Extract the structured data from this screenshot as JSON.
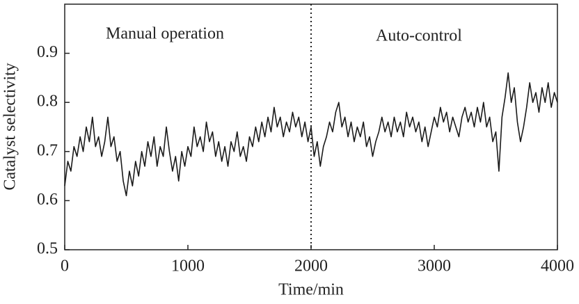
{
  "chart_data": {
    "type": "line",
    "xlabel": "Time/min",
    "ylabel": "Catalyst selectivity",
    "annotations": [
      "Manual operation",
      "Auto-control"
    ],
    "vline": 2000,
    "xlim": [
      0,
      4000
    ],
    "xticks": [
      0,
      1000,
      2000,
      3000,
      4000
    ],
    "ylim": [
      0.5,
      1.0
    ],
    "yticks": [
      0.5,
      0.6,
      0.7,
      0.8,
      0.9
    ],
    "x": [
      0,
      25,
      50,
      75,
      100,
      125,
      150,
      175,
      200,
      225,
      250,
      275,
      300,
      325,
      350,
      375,
      400,
      425,
      450,
      475,
      500,
      525,
      550,
      575,
      600,
      625,
      650,
      675,
      700,
      725,
      750,
      775,
      800,
      825,
      850,
      875,
      900,
      925,
      950,
      975,
      1000,
      1025,
      1050,
      1075,
      1100,
      1125,
      1150,
      1175,
      1200,
      1225,
      1250,
      1275,
      1300,
      1325,
      1350,
      1375,
      1400,
      1425,
      1450,
      1475,
      1500,
      1525,
      1550,
      1575,
      1600,
      1625,
      1650,
      1675,
      1700,
      1725,
      1750,
      1775,
      1800,
      1825,
      1850,
      1875,
      1900,
      1925,
      1950,
      1975,
      2000,
      2025,
      2050,
      2075,
      2100,
      2125,
      2150,
      2175,
      2200,
      2225,
      2250,
      2275,
      2300,
      2325,
      2350,
      2375,
      2400,
      2425,
      2450,
      2475,
      2500,
      2525,
      2550,
      2575,
      2600,
      2625,
      2650,
      2675,
      2700,
      2725,
      2750,
      2775,
      2800,
      2825,
      2850,
      2875,
      2900,
      2925,
      2950,
      2975,
      3000,
      3025,
      3050,
      3075,
      3100,
      3125,
      3150,
      3175,
      3200,
      3225,
      3250,
      3275,
      3300,
      3325,
      3350,
      3375,
      3400,
      3425,
      3450,
      3475,
      3500,
      3525,
      3550,
      3575,
      3600,
      3625,
      3650,
      3675,
      3700,
      3725,
      3750,
      3775,
      3800,
      3825,
      3850,
      3875,
      3900,
      3925,
      3950,
      3975,
      4000
    ],
    "series": [
      {
        "color": "#1a1a1a",
        "values": [
          0.63,
          0.68,
          0.66,
          0.71,
          0.69,
          0.73,
          0.7,
          0.75,
          0.72,
          0.77,
          0.71,
          0.73,
          0.69,
          0.72,
          0.77,
          0.71,
          0.73,
          0.68,
          0.7,
          0.64,
          0.61,
          0.66,
          0.63,
          0.68,
          0.65,
          0.7,
          0.67,
          0.72,
          0.69,
          0.73,
          0.67,
          0.71,
          0.69,
          0.75,
          0.7,
          0.66,
          0.69,
          0.64,
          0.7,
          0.67,
          0.71,
          0.69,
          0.75,
          0.71,
          0.73,
          0.7,
          0.76,
          0.72,
          0.74,
          0.69,
          0.72,
          0.68,
          0.71,
          0.67,
          0.72,
          0.7,
          0.74,
          0.69,
          0.71,
          0.68,
          0.73,
          0.71,
          0.75,
          0.72,
          0.76,
          0.73,
          0.77,
          0.74,
          0.79,
          0.75,
          0.77,
          0.73,
          0.76,
          0.74,
          0.78,
          0.75,
          0.77,
          0.73,
          0.76,
          0.72,
          0.75,
          0.69,
          0.72,
          0.67,
          0.71,
          0.73,
          0.76,
          0.74,
          0.78,
          0.8,
          0.75,
          0.77,
          0.73,
          0.76,
          0.72,
          0.75,
          0.73,
          0.76,
          0.71,
          0.73,
          0.69,
          0.72,
          0.74,
          0.77,
          0.74,
          0.76,
          0.73,
          0.77,
          0.74,
          0.76,
          0.73,
          0.78,
          0.75,
          0.77,
          0.74,
          0.76,
          0.72,
          0.75,
          0.71,
          0.74,
          0.77,
          0.75,
          0.79,
          0.76,
          0.78,
          0.74,
          0.77,
          0.75,
          0.73,
          0.77,
          0.79,
          0.76,
          0.78,
          0.75,
          0.79,
          0.76,
          0.8,
          0.75,
          0.77,
          0.72,
          0.74,
          0.66,
          0.77,
          0.81,
          0.86,
          0.8,
          0.83,
          0.76,
          0.72,
          0.75,
          0.79,
          0.84,
          0.8,
          0.82,
          0.78,
          0.83,
          0.8,
          0.84,
          0.79,
          0.82,
          0.8
        ]
      }
    ]
  }
}
